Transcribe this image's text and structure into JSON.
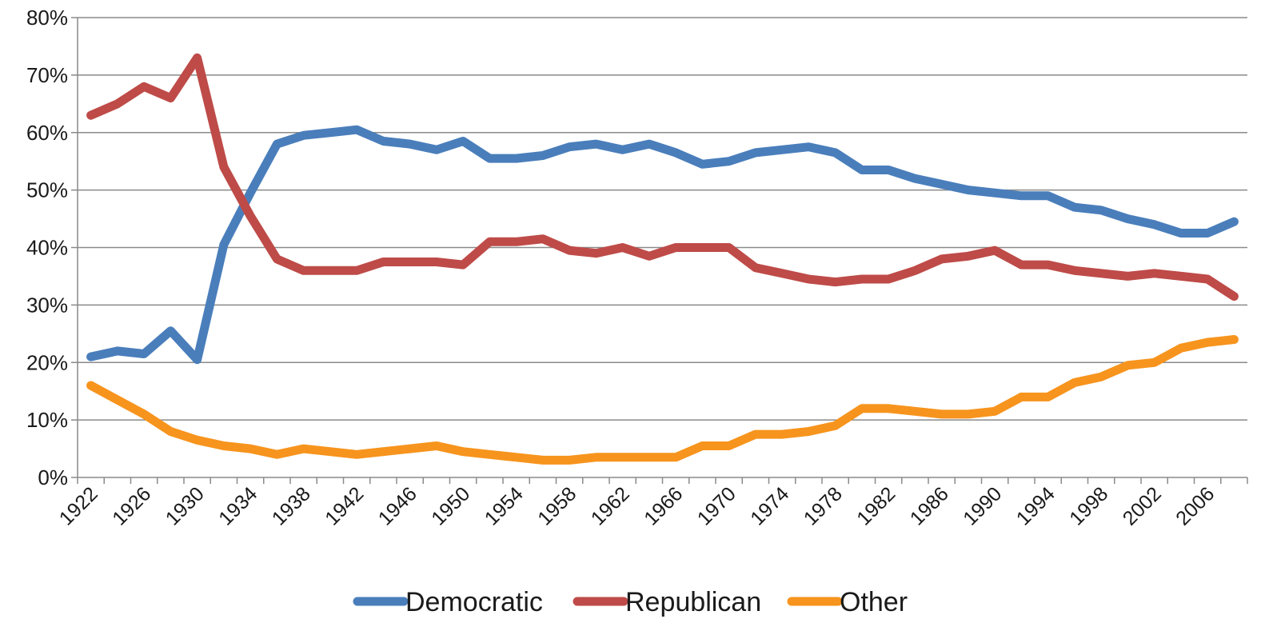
{
  "chart_data": {
    "type": "line",
    "title": "",
    "xlabel": "",
    "ylabel": "",
    "ylim": [
      0,
      80
    ],
    "y_ticks": [
      "0%",
      "10%",
      "20%",
      "30%",
      "40%",
      "50%",
      "60%",
      "70%",
      "80%"
    ],
    "x_tick_labels": [
      "1922",
      "1926",
      "1930",
      "1934",
      "1938",
      "1942",
      "1946",
      "1950",
      "1954",
      "1958",
      "1962",
      "1966",
      "1970",
      "1974",
      "1978",
      "1982",
      "1986",
      "1990",
      "1994",
      "1998",
      "2002",
      "2006"
    ],
    "grid": "horizontal",
    "legend_position": "bottom",
    "x": [
      1922,
      1924,
      1926,
      1928,
      1930,
      1932,
      1934,
      1936,
      1938,
      1940,
      1942,
      1944,
      1946,
      1948,
      1950,
      1952,
      1954,
      1956,
      1958,
      1960,
      1962,
      1964,
      1966,
      1968,
      1970,
      1972,
      1974,
      1976,
      1978,
      1980,
      1982,
      1984,
      1986,
      1988,
      1990,
      1992,
      1994,
      1996,
      1998,
      2000,
      2002,
      2004,
      2006,
      2008
    ],
    "series": [
      {
        "name": "Democratic",
        "color": "#4a7ebb",
        "values": [
          21,
          22,
          21.5,
          25.5,
          20.5,
          40.5,
          49.5,
          58,
          59.5,
          60,
          60.5,
          58.5,
          58,
          57,
          58.5,
          55.5,
          55.5,
          56,
          57.5,
          58,
          57,
          58,
          56.5,
          54.5,
          55,
          56.5,
          57,
          57.5,
          56.5,
          53.5,
          53.5,
          52,
          51,
          50,
          49.5,
          49,
          49,
          47,
          46.5,
          45,
          44,
          42.5,
          42.5,
          44.5
        ]
      },
      {
        "name": "Republican",
        "color": "#be4b48",
        "values": [
          63,
          65,
          68,
          66,
          73,
          54,
          45.5,
          38,
          36,
          36,
          36,
          37.5,
          37.5,
          37.5,
          37,
          41,
          41,
          41.5,
          39.5,
          39,
          40,
          38.5,
          40,
          40,
          40,
          36.5,
          35.5,
          34.5,
          34,
          34.5,
          34.5,
          36,
          38,
          38.5,
          39.5,
          37,
          37,
          36,
          35.5,
          35,
          35.5,
          35,
          34.5,
          31.5
        ]
      },
      {
        "name": "Other",
        "color": "#f7941d",
        "values": [
          16,
          13.5,
          11,
          8,
          6.5,
          5.5,
          5,
          4,
          5,
          4.5,
          4,
          4.5,
          5,
          5.5,
          4.5,
          4,
          3.5,
          3,
          3,
          3.5,
          3.5,
          3.5,
          3.5,
          5.5,
          5.5,
          7.5,
          7.5,
          8,
          9,
          12,
          12,
          11.5,
          11,
          11,
          11.5,
          14,
          14,
          16.5,
          17.5,
          19.5,
          20,
          22.5,
          23.5,
          24
        ]
      }
    ]
  }
}
